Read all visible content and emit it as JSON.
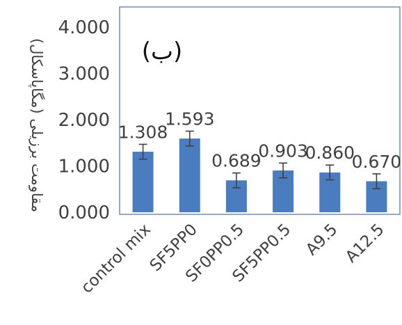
{
  "chart_data": {
    "type": "bar",
    "panel_label": "(ب)",
    "ylabel": "مقاومت برزیلی (مگاپاسکال)",
    "categories": [
      "control mix",
      "SF5PP0",
      "SF0PP0.5",
      "SF5PP0.5",
      "A9.5",
      "A12.5"
    ],
    "values": [
      1.308,
      1.593,
      0.689,
      0.903,
      0.86,
      0.67
    ],
    "data_labels": [
      "1.308",
      "1.593",
      "0.689",
      "0.903",
      "0.860",
      "0.670"
    ],
    "error": [
      0.16,
      0.16,
      0.16,
      0.16,
      0.16,
      0.16
    ],
    "yticks": [
      "0.000",
      "1.000",
      "2.000",
      "3.000",
      "4.000"
    ],
    "ylim": [
      0,
      4.5
    ],
    "grid": false,
    "legend": "none",
    "colors": {
      "bar": "#4a7cc0",
      "error": "#404040",
      "text": "#404040",
      "frame": "#4472c4"
    }
  }
}
